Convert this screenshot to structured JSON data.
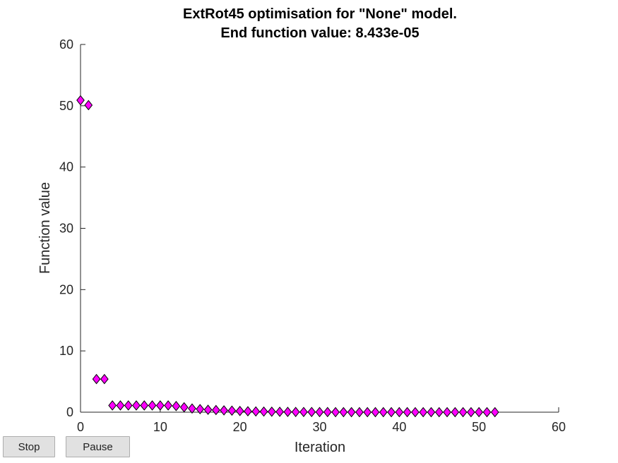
{
  "chart_data": {
    "type": "scatter",
    "title_line1": "ExtRot45 optimisation for \"None\" model.",
    "title_line2": "End function value: 8.433e-05",
    "xlabel": "Iteration",
    "ylabel": "Function value",
    "xlim": [
      0,
      60
    ],
    "ylim": [
      0,
      60
    ],
    "xticks": [
      "0",
      "10",
      "20",
      "30",
      "40",
      "50",
      "60"
    ],
    "yticks": [
      "0",
      "10",
      "20",
      "30",
      "40",
      "50",
      "60"
    ],
    "grid": false,
    "marker": "diamond",
    "marker_color": "#ff00ff",
    "x": [
      0,
      1,
      2,
      3,
      4,
      5,
      6,
      7,
      8,
      9,
      10,
      11,
      12,
      13,
      14,
      15,
      16,
      17,
      18,
      19,
      20,
      21,
      22,
      23,
      24,
      25,
      26,
      27,
      28,
      29,
      30,
      31,
      32,
      33,
      34,
      35,
      36,
      37,
      38,
      39,
      40,
      41,
      42,
      43,
      44,
      45,
      46,
      47,
      48,
      49,
      50,
      51,
      52
    ],
    "y": [
      50.9,
      50.1,
      5.4,
      5.4,
      1.1,
      1.1,
      1.1,
      1.1,
      1.1,
      1.1,
      1.1,
      1.1,
      1.0,
      0.8,
      0.6,
      0.5,
      0.4,
      0.35,
      0.3,
      0.25,
      0.2,
      0.15,
      0.12,
      0.1,
      0.08,
      0.06,
      0.05,
      0.04,
      0.03,
      0.03,
      0.02,
      0.02,
      0.01,
      0.01,
      0.01,
      0.005,
      0.005,
      0.004,
      0.003,
      0.003,
      0.002,
      0.002,
      0.001,
      0.001,
      0.001,
      0.0008,
      0.0006,
      0.0005,
      0.0004,
      0.0003,
      0.0002,
      0.0001,
      8.433e-05
    ]
  },
  "controls": {
    "stop_label": "Stop",
    "pause_label": "Pause"
  }
}
